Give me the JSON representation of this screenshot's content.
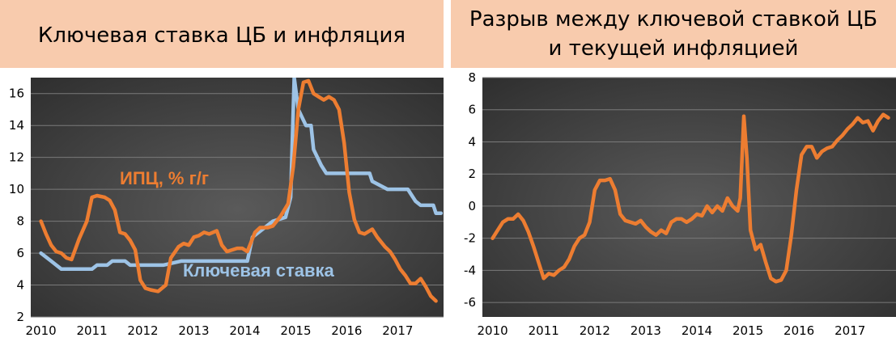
{
  "colors": {
    "title_band": "#F8CBAD",
    "plot_bg": "#454545",
    "grid": "#7a7a7a",
    "cpi": "#ED7D31",
    "key_rate": "#9DC3E6"
  },
  "chart_data": [
    {
      "type": "line",
      "title": "Ключевая ставка ЦБ и инфляция",
      "xlim": [
        2009.8,
        2017.9
      ],
      "ylim": [
        2,
        17
      ],
      "x_ticks": [
        "2010",
        "2011",
        "2012",
        "2013",
        "2014",
        "2015",
        "2016",
        "2017"
      ],
      "y_ticks": [
        "2",
        "4",
        "6",
        "8",
        "10",
        "12",
        "14",
        "16"
      ],
      "grid": true,
      "series": [
        {
          "name": "ИПЦ, % г/г",
          "color": "#ED7D31",
          "points": [
            [
              2010.0,
              8.0
            ],
            [
              2010.1,
              7.2
            ],
            [
              2010.2,
              6.5
            ],
            [
              2010.3,
              6.1
            ],
            [
              2010.4,
              6.0
            ],
            [
              2010.5,
              5.7
            ],
            [
              2010.6,
              5.6
            ],
            [
              2010.75,
              6.9
            ],
            [
              2010.9,
              8.0
            ],
            [
              2011.0,
              9.5
            ],
            [
              2011.1,
              9.6
            ],
            [
              2011.25,
              9.5
            ],
            [
              2011.35,
              9.3
            ],
            [
              2011.45,
              8.7
            ],
            [
              2011.55,
              7.3
            ],
            [
              2011.65,
              7.2
            ],
            [
              2011.75,
              6.8
            ],
            [
              2011.85,
              6.2
            ],
            [
              2011.95,
              4.3
            ],
            [
              2012.05,
              3.8
            ],
            [
              2012.15,
              3.7
            ],
            [
              2012.3,
              3.6
            ],
            [
              2012.45,
              4.0
            ],
            [
              2012.55,
              5.7
            ],
            [
              2012.7,
              6.4
            ],
            [
              2012.8,
              6.6
            ],
            [
              2012.9,
              6.5
            ],
            [
              2013.0,
              7.0
            ],
            [
              2013.1,
              7.1
            ],
            [
              2013.2,
              7.3
            ],
            [
              2013.3,
              7.2
            ],
            [
              2013.45,
              7.4
            ],
            [
              2013.55,
              6.5
            ],
            [
              2013.65,
              6.1
            ],
            [
              2013.75,
              6.2
            ],
            [
              2013.85,
              6.3
            ],
            [
              2013.95,
              6.3
            ],
            [
              2014.05,
              6.1
            ],
            [
              2014.2,
              7.3
            ],
            [
              2014.3,
              7.6
            ],
            [
              2014.45,
              7.6
            ],
            [
              2014.55,
              7.7
            ],
            [
              2014.7,
              8.3
            ],
            [
              2014.85,
              9.1
            ],
            [
              2014.95,
              11.4
            ],
            [
              2015.05,
              15.0
            ],
            [
              2015.15,
              16.7
            ],
            [
              2015.25,
              16.8
            ],
            [
              2015.35,
              16.0
            ],
            [
              2015.45,
              15.8
            ],
            [
              2015.55,
              15.6
            ],
            [
              2015.65,
              15.8
            ],
            [
              2015.75,
              15.6
            ],
            [
              2015.85,
              15.0
            ],
            [
              2015.95,
              12.9
            ],
            [
              2016.05,
              9.8
            ],
            [
              2016.15,
              8.1
            ],
            [
              2016.25,
              7.3
            ],
            [
              2016.35,
              7.2
            ],
            [
              2016.5,
              7.5
            ],
            [
              2016.6,
              7.0
            ],
            [
              2016.75,
              6.4
            ],
            [
              2016.85,
              6.1
            ],
            [
              2016.95,
              5.6
            ],
            [
              2017.05,
              5.0
            ],
            [
              2017.15,
              4.6
            ],
            [
              2017.25,
              4.1
            ],
            [
              2017.35,
              4.1
            ],
            [
              2017.45,
              4.4
            ],
            [
              2017.55,
              3.9
            ],
            [
              2017.65,
              3.3
            ],
            [
              2017.75,
              3.0
            ]
          ]
        },
        {
          "name": "Ключевая ставка",
          "color": "#9DC3E6",
          "points": [
            [
              2010.0,
              6.0
            ],
            [
              2010.1,
              5.75
            ],
            [
              2010.2,
              5.5
            ],
            [
              2010.3,
              5.25
            ],
            [
              2010.4,
              5.0
            ],
            [
              2010.6,
              5.0
            ],
            [
              2010.8,
              5.0
            ],
            [
              2011.0,
              5.0
            ],
            [
              2011.1,
              5.25
            ],
            [
              2011.3,
              5.25
            ],
            [
              2011.4,
              5.5
            ],
            [
              2011.65,
              5.5
            ],
            [
              2011.75,
              5.25
            ],
            [
              2012.4,
              5.25
            ],
            [
              2012.75,
              5.5
            ],
            [
              2014.05,
              5.5
            ],
            [
              2014.15,
              7.0
            ],
            [
              2014.35,
              7.5
            ],
            [
              2014.55,
              8.0
            ],
            [
              2014.8,
              8.25
            ],
            [
              2014.9,
              9.5
            ],
            [
              2014.97,
              17.0
            ],
            [
              2015.05,
              15.0
            ],
            [
              2015.2,
              14.0
            ],
            [
              2015.3,
              14.0
            ],
            [
              2015.35,
              12.5
            ],
            [
              2015.5,
              11.5
            ],
            [
              2015.6,
              11.0
            ],
            [
              2016.45,
              11.0
            ],
            [
              2016.5,
              10.5
            ],
            [
              2016.8,
              10.0
            ],
            [
              2017.2,
              10.0
            ],
            [
              2017.25,
              9.75
            ],
            [
              2017.35,
              9.25
            ],
            [
              2017.45,
              9.0
            ],
            [
              2017.7,
              9.0
            ],
            [
              2017.75,
              8.5
            ],
            [
              2017.85,
              8.5
            ]
          ]
        }
      ]
    },
    {
      "type": "line",
      "title": "Разрыв между ключевой ставкой ЦБ и текущей инфляцией",
      "xlim": [
        2009.8,
        2017.9
      ],
      "ylim": [
        -6.9,
        8
      ],
      "x_ticks": [
        "2010",
        "2011",
        "2012",
        "2013",
        "2014",
        "2015",
        "2016",
        "2017"
      ],
      "y_ticks": [
        "8",
        "6",
        "4",
        "2",
        "0",
        "-2",
        "-4",
        "-6"
      ],
      "grid": true,
      "series": [
        {
          "color": "#ED7D31",
          "points": [
            [
              2010.0,
              -2.0
            ],
            [
              2010.1,
              -1.5
            ],
            [
              2010.2,
              -1.0
            ],
            [
              2010.3,
              -0.8
            ],
            [
              2010.4,
              -0.8
            ],
            [
              2010.5,
              -0.5
            ],
            [
              2010.6,
              -0.9
            ],
            [
              2010.7,
              -1.6
            ],
            [
              2010.8,
              -2.5
            ],
            [
              2010.9,
              -3.5
            ],
            [
              2011.0,
              -4.5
            ],
            [
              2011.1,
              -4.2
            ],
            [
              2011.2,
              -4.3
            ],
            [
              2011.3,
              -4.0
            ],
            [
              2011.4,
              -3.8
            ],
            [
              2011.5,
              -3.3
            ],
            [
              2011.6,
              -2.5
            ],
            [
              2011.7,
              -2.0
            ],
            [
              2011.8,
              -1.8
            ],
            [
              2011.9,
              -1.0
            ],
            [
              2012.0,
              1.0
            ],
            [
              2012.1,
              1.6
            ],
            [
              2012.2,
              1.6
            ],
            [
              2012.3,
              1.7
            ],
            [
              2012.4,
              1.0
            ],
            [
              2012.5,
              -0.5
            ],
            [
              2012.6,
              -0.9
            ],
            [
              2012.7,
              -1.0
            ],
            [
              2012.8,
              -1.1
            ],
            [
              2012.9,
              -0.9
            ],
            [
              2013.0,
              -1.3
            ],
            [
              2013.1,
              -1.6
            ],
            [
              2013.2,
              -1.8
            ],
            [
              2013.3,
              -1.5
            ],
            [
              2013.4,
              -1.7
            ],
            [
              2013.5,
              -1.0
            ],
            [
              2013.6,
              -0.8
            ],
            [
              2013.7,
              -0.8
            ],
            [
              2013.8,
              -1.0
            ],
            [
              2013.9,
              -0.8
            ],
            [
              2014.0,
              -0.5
            ],
            [
              2014.1,
              -0.6
            ],
            [
              2014.2,
              0.0
            ],
            [
              2014.3,
              -0.4
            ],
            [
              2014.4,
              0.0
            ],
            [
              2014.5,
              -0.3
            ],
            [
              2014.6,
              0.5
            ],
            [
              2014.7,
              0.0
            ],
            [
              2014.8,
              -0.3
            ],
            [
              2014.85,
              0.5
            ],
            [
              2014.92,
              5.6
            ],
            [
              2014.98,
              3.0
            ],
            [
              2015.05,
              -1.5
            ],
            [
              2015.15,
              -2.7
            ],
            [
              2015.25,
              -2.4
            ],
            [
              2015.35,
              -3.5
            ],
            [
              2015.45,
              -4.5
            ],
            [
              2015.55,
              -4.7
            ],
            [
              2015.65,
              -4.6
            ],
            [
              2015.75,
              -4.0
            ],
            [
              2015.85,
              -1.8
            ],
            [
              2015.95,
              1.0
            ],
            [
              2016.05,
              3.2
            ],
            [
              2016.15,
              3.7
            ],
            [
              2016.25,
              3.7
            ],
            [
              2016.35,
              3.0
            ],
            [
              2016.45,
              3.4
            ],
            [
              2016.55,
              3.6
            ],
            [
              2016.65,
              3.7
            ],
            [
              2016.75,
              4.1
            ],
            [
              2016.85,
              4.4
            ],
            [
              2016.95,
              4.8
            ],
            [
              2017.05,
              5.1
            ],
            [
              2017.15,
              5.5
            ],
            [
              2017.25,
              5.2
            ],
            [
              2017.35,
              5.3
            ],
            [
              2017.45,
              4.7
            ],
            [
              2017.55,
              5.3
            ],
            [
              2017.65,
              5.7
            ],
            [
              2017.75,
              5.5
            ]
          ]
        }
      ]
    }
  ]
}
